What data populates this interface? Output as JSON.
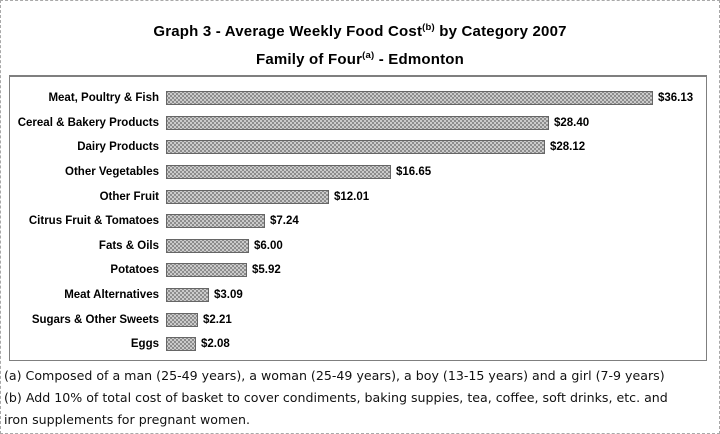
{
  "header": {
    "line1_pre": "Graph 3 - Average Weekly Food Cost",
    "line1_sup": "(b)",
    "line1_post": " by Category 2007",
    "line2_pre": "Family of Four",
    "line2_sup": "(a)",
    "line2_post": " - Edmonton"
  },
  "chart_data": {
    "type": "bar",
    "orientation": "horizontal",
    "title": "Graph 3 - Average Weekly Food Cost(b) by Category 2007 / Family of Four(a) - Edmonton",
    "categories": [
      "Meat, Poultry & Fish",
      "Cereal & Bakery Products",
      "Dairy Products",
      "Other Vegetables",
      "Other Fruit",
      "Citrus Fruit & Tomatoes",
      "Fats & Oils",
      "Potatoes",
      "Meat Alternatives",
      "Sugars & Other Sweets",
      "Eggs"
    ],
    "values": [
      36.13,
      28.4,
      28.12,
      16.65,
      12.01,
      7.24,
      6.0,
      5.92,
      3.09,
      2.21,
      2.08
    ],
    "value_labels": [
      "$36.13",
      "$28.40",
      "$28.12",
      "$16.65",
      "$12.01",
      "$7.24",
      "$6.00",
      "$5.92",
      "$3.09",
      "$2.21",
      "$2.08"
    ],
    "xlabel": "",
    "ylabel": "",
    "xlim": [
      0,
      40
    ],
    "axes_visible": false,
    "grid": false,
    "legend": false,
    "data_labels": true,
    "bar_style": {
      "fill": "#cbcbcb",
      "dot_pattern": "#7d7d7d",
      "border": "#666666"
    }
  },
  "footnotes": {
    "lines": [
      "(a)  Composed of a man (25-49 years), a woman (25-49 years), a boy (13-15 years) and a girl (7-9 years)",
      "(b) Add 10% of total cost of basket to cover condiments, baking suppies, tea, coffee, soft drinks, etc. and",
      "iron supplements for pregnant women."
    ]
  }
}
